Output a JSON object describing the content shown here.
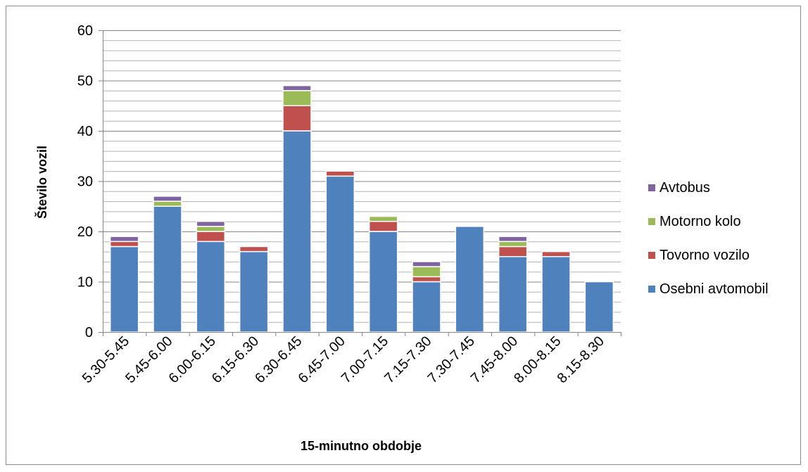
{
  "chart_data": {
    "type": "bar",
    "stacked": true,
    "title": "",
    "xlabel": "15-minutno obdobje",
    "ylabel": "Število vozil",
    "ylim": [
      0,
      60
    ],
    "y_major_ticks": [
      0,
      10,
      20,
      30,
      40,
      50,
      60
    ],
    "y_minor_step": 2,
    "grid": true,
    "legend_position": "right",
    "categories": [
      "5.30-5.45",
      "5.45-6.00",
      "6.00-6.15",
      "6.15-6.30",
      "6.30-6.45",
      "6.45-7.00",
      "7.00-7.15",
      "7.15-7.30",
      "7.30-7.45",
      "7.45-8.00",
      "8.00-8.15",
      "8.15-8.30"
    ],
    "series": [
      {
        "name": "Osebni avtomobil",
        "color": "#4f81bd",
        "values": [
          17,
          25,
          18,
          16,
          40,
          31,
          20,
          10,
          21,
          15,
          15,
          10
        ]
      },
      {
        "name": "Tovorno vozilo",
        "color": "#c0504d",
        "values": [
          1,
          0,
          2,
          1,
          5,
          1,
          2,
          1,
          0,
          2,
          1,
          0
        ]
      },
      {
        "name": "Motorno kolo",
        "color": "#9bbb59",
        "values": [
          0,
          1,
          1,
          0,
          3,
          0,
          1,
          2,
          0,
          1,
          0,
          0
        ]
      },
      {
        "name": "Avtobus",
        "color": "#8064a2",
        "values": [
          1,
          1,
          1,
          0,
          1,
          0,
          0,
          1,
          0,
          1,
          0,
          0
        ]
      }
    ]
  }
}
